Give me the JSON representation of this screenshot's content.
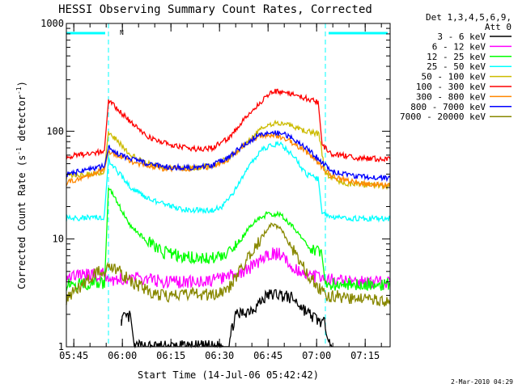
{
  "chart_data": {
    "type": "line",
    "title": "HESSI Observing Summary Count Rates, Corrected",
    "xlabel": "Start Time (14-Jul-06 05:42:42)",
    "ylabel_main": "Corrected Count Rate (s",
    "ylabel_sup1": "-1",
    "ylabel_mid": " detector",
    "ylabel_sup2": "-1",
    "ylabel_end": ")",
    "y_scale": "log",
    "ylim": [
      1,
      1000
    ],
    "xlim_minutes": [
      0,
      100
    ],
    "x_ticks": [
      {
        "label": "05:45",
        "minute": 2.3
      },
      {
        "label": "06:00",
        "minute": 17.3
      },
      {
        "label": "06:15",
        "minute": 32.3
      },
      {
        "label": "06:30",
        "minute": 47.3
      },
      {
        "label": "06:45",
        "minute": 62.3
      },
      {
        "label": "07:00",
        "minute": 77.3
      },
      {
        "label": "07:15",
        "minute": 92.3
      }
    ],
    "y_ticks": [
      {
        "label": "1",
        "value": 1
      },
      {
        "label": "10",
        "value": 10
      },
      {
        "label": "100",
        "value": 100
      },
      {
        "label": "1000",
        "value": 1000
      }
    ],
    "legend_header": [
      "Det 1,3,4,5,6,9,",
      "Att 0"
    ],
    "legend_placement": "right",
    "series": [
      {
        "name": "3 - 6 keV",
        "color": "#000000",
        "points": [
          [
            16,
            1
          ],
          [
            17,
            1.8
          ],
          [
            20,
            1.9
          ],
          [
            21,
            1
          ],
          [
            50,
            1
          ],
          [
            52,
            1.9
          ],
          [
            58,
            2.3
          ],
          [
            62,
            3.0
          ],
          [
            65,
            3.1
          ],
          [
            70,
            2.8
          ],
          [
            75,
            2.0
          ],
          [
            80,
            1.6
          ],
          [
            82,
            1
          ]
        ]
      },
      {
        "name": "6 - 12 keV",
        "color": "#ff00ff",
        "points": [
          [
            0,
            4.6
          ],
          [
            12,
            4.7
          ],
          [
            14,
            4.2
          ],
          [
            20,
            4.3
          ],
          [
            25,
            4.3
          ],
          [
            30,
            4.0
          ],
          [
            40,
            4.0
          ],
          [
            45,
            4.1
          ],
          [
            50,
            4.5
          ],
          [
            55,
            5.0
          ],
          [
            60,
            6.3
          ],
          [
            63,
            7.4
          ],
          [
            66,
            7.2
          ],
          [
            70,
            5.5
          ],
          [
            75,
            4.6
          ],
          [
            80,
            4.2
          ],
          [
            90,
            4.0
          ],
          [
            100,
            4.0
          ]
        ]
      },
      {
        "name": "12 - 25 keV",
        "color": "#00ff00",
        "points": [
          [
            0,
            3.8
          ],
          [
            12,
            3.9
          ],
          [
            13,
            30
          ],
          [
            15,
            24
          ],
          [
            20,
            13
          ],
          [
            25,
            9.5
          ],
          [
            30,
            7.5
          ],
          [
            35,
            7.0
          ],
          [
            40,
            6.7
          ],
          [
            45,
            6.6
          ],
          [
            50,
            7.2
          ],
          [
            54,
            10.0
          ],
          [
            58,
            14.5
          ],
          [
            62,
            17.0
          ],
          [
            66,
            17.0
          ],
          [
            70,
            13.0
          ],
          [
            75,
            8.5
          ],
          [
            79,
            7.0
          ],
          [
            80,
            3.8
          ],
          [
            90,
            3.8
          ],
          [
            100,
            3.8
          ]
        ]
      },
      {
        "name": "25 - 50 keV",
        "color": "#00ffff",
        "points": [
          [
            0,
            15.5
          ],
          [
            12,
            16.0
          ],
          [
            13,
            55
          ],
          [
            15,
            45
          ],
          [
            20,
            30
          ],
          [
            25,
            24
          ],
          [
            30,
            21
          ],
          [
            35,
            19
          ],
          [
            40,
            18.5
          ],
          [
            45,
            18.5
          ],
          [
            48,
            20
          ],
          [
            52,
            28
          ],
          [
            56,
            45
          ],
          [
            60,
            65
          ],
          [
            63,
            75
          ],
          [
            66,
            76
          ],
          [
            70,
            60
          ],
          [
            74,
            40
          ],
          [
            78,
            36
          ],
          [
            79,
            17
          ],
          [
            85,
            15.5
          ],
          [
            100,
            15.5
          ]
        ]
      },
      {
        "name": "50 - 100 keV",
        "color": "#ccbb00",
        "points": [
          [
            0,
            38
          ],
          [
            12,
            42
          ],
          [
            13,
            100
          ],
          [
            16,
            80
          ],
          [
            20,
            60
          ],
          [
            25,
            50
          ],
          [
            30,
            47
          ],
          [
            35,
            46
          ],
          [
            40,
            46
          ],
          [
            45,
            48
          ],
          [
            50,
            56
          ],
          [
            55,
            75
          ],
          [
            60,
            105
          ],
          [
            64,
            118
          ],
          [
            68,
            115
          ],
          [
            74,
            100
          ],
          [
            78,
            95
          ],
          [
            80,
            40
          ],
          [
            85,
            33
          ],
          [
            100,
            31
          ]
        ]
      },
      {
        "name": "100 - 300 keV",
        "color": "#ff0000",
        "points": [
          [
            0,
            58
          ],
          [
            10,
            64
          ],
          [
            12,
            66
          ],
          [
            13,
            190
          ],
          [
            15,
            170
          ],
          [
            20,
            120
          ],
          [
            25,
            90
          ],
          [
            30,
            78
          ],
          [
            35,
            72
          ],
          [
            40,
            68
          ],
          [
            45,
            70
          ],
          [
            50,
            85
          ],
          [
            55,
            130
          ],
          [
            60,
            185
          ],
          [
            64,
            235
          ],
          [
            68,
            230
          ],
          [
            72,
            210
          ],
          [
            78,
            185
          ],
          [
            79,
            75
          ],
          [
            82,
            62
          ],
          [
            90,
            56
          ],
          [
            100,
            55
          ]
        ]
      },
      {
        "name": "300 - 800 keV",
        "color": "#ff8800",
        "points": [
          [
            0,
            33
          ],
          [
            10,
            42
          ],
          [
            12,
            45
          ],
          [
            13,
            65
          ],
          [
            16,
            60
          ],
          [
            20,
            52
          ],
          [
            25,
            48
          ],
          [
            30,
            45
          ],
          [
            35,
            45
          ],
          [
            40,
            45
          ],
          [
            45,
            47
          ],
          [
            50,
            55
          ],
          [
            55,
            75
          ],
          [
            60,
            90
          ],
          [
            64,
            92
          ],
          [
            68,
            85
          ],
          [
            74,
            65
          ],
          [
            78,
            50
          ],
          [
            82,
            38
          ],
          [
            90,
            33
          ],
          [
            100,
            31
          ]
        ]
      },
      {
        "name": "800 - 7000 keV",
        "color": "#0000ff",
        "points": [
          [
            0,
            40
          ],
          [
            10,
            46
          ],
          [
            12,
            49
          ],
          [
            13,
            70
          ],
          [
            16,
            62
          ],
          [
            20,
            55
          ],
          [
            25,
            50
          ],
          [
            30,
            47
          ],
          [
            35,
            46
          ],
          [
            40,
            46
          ],
          [
            45,
            48
          ],
          [
            50,
            57
          ],
          [
            55,
            75
          ],
          [
            60,
            95
          ],
          [
            64,
            98
          ],
          [
            68,
            92
          ],
          [
            74,
            70
          ],
          [
            78,
            55
          ],
          [
            82,
            42
          ],
          [
            90,
            38
          ],
          [
            100,
            37
          ]
        ]
      },
      {
        "name": "7000 - 20000 keV",
        "color": "#888800",
        "points": [
          [
            0,
            2.8
          ],
          [
            10,
            5.0
          ],
          [
            12,
            5.2
          ],
          [
            15,
            5.4
          ],
          [
            20,
            4.0
          ],
          [
            25,
            3.3
          ],
          [
            30,
            3.0
          ],
          [
            35,
            3.0
          ],
          [
            40,
            3.1
          ],
          [
            45,
            3.0
          ],
          [
            50,
            3.5
          ],
          [
            55,
            6.0
          ],
          [
            60,
            10.0
          ],
          [
            63,
            13.5
          ],
          [
            66,
            12.5
          ],
          [
            70,
            8.0
          ],
          [
            75,
            4.5
          ],
          [
            80,
            3.0
          ],
          [
            90,
            2.8
          ],
          [
            100,
            2.7
          ]
        ]
      }
    ],
    "annotation_flag": "N",
    "timestamp": "2-Mar-2010 04:29"
  }
}
